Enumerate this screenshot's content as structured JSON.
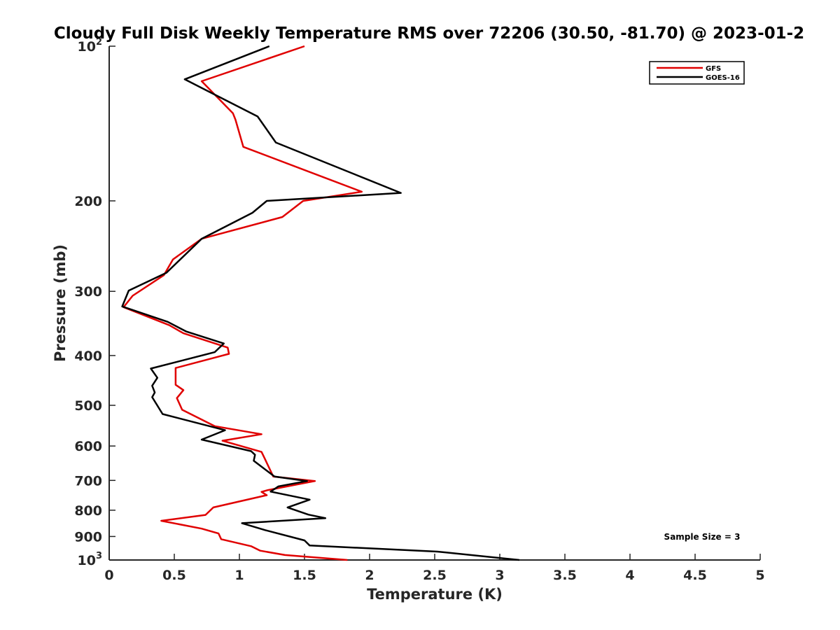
{
  "chart_data": {
    "type": "line",
    "title": "Cloudy Full Disk Weekly Temperature RMS over 72206 (30.50, -81.70) @ 2023-01-2",
    "xlabel": "Temperature (K)",
    "ylabel": "Pressure (mb)",
    "xlim": [
      0,
      5
    ],
    "ylim": [
      1000,
      100
    ],
    "y_scale": "log",
    "y_reversed": true,
    "x_ticks": [
      "0",
      "0.5",
      "1",
      "1.5",
      "2",
      "2.5",
      "3",
      "3.5",
      "4",
      "4.5",
      "5"
    ],
    "y_ticks": [
      {
        "value": 100,
        "base": "10",
        "exp": "2"
      },
      {
        "value": 200,
        "label": "200"
      },
      {
        "value": 300,
        "label": "300"
      },
      {
        "value": 400,
        "label": "400"
      },
      {
        "value": 500,
        "label": "500"
      },
      {
        "value": 600,
        "label": "600"
      },
      {
        "value": 700,
        "label": "700"
      },
      {
        "value": 800,
        "label": "800"
      },
      {
        "value": 900,
        "label": "900"
      },
      {
        "value": 1000,
        "base": "10",
        "exp": "3"
      }
    ],
    "grid": false,
    "legend_position": "top-right",
    "annotation": "Sample Size = 3",
    "series": [
      {
        "name": "GFS",
        "color": "#e00000",
        "points": [
          [
            1.5,
            100
          ],
          [
            0.71,
            117
          ],
          [
            0.95,
            135
          ],
          [
            0.97,
            139
          ],
          [
            1.03,
            157
          ],
          [
            1.94,
            192
          ],
          [
            1.49,
            200
          ],
          [
            1.33,
            215
          ],
          [
            0.71,
            237
          ],
          [
            0.49,
            260
          ],
          [
            0.42,
            279
          ],
          [
            0.18,
            306
          ],
          [
            0.11,
            322
          ],
          [
            0.46,
            349
          ],
          [
            0.57,
            362
          ],
          [
            0.91,
            386
          ],
          [
            0.92,
            397
          ],
          [
            0.51,
            423
          ],
          [
            0.51,
            456
          ],
          [
            0.57,
            467
          ],
          [
            0.52,
            484
          ],
          [
            0.56,
            510
          ],
          [
            0.81,
            549
          ],
          [
            1.17,
            569
          ],
          [
            0.87,
            586
          ],
          [
            1.17,
            616
          ],
          [
            1.19,
            631
          ],
          [
            1.26,
            688
          ],
          [
            1.58,
            702
          ],
          [
            1.22,
            731
          ],
          [
            1.17,
            737
          ],
          [
            1.21,
            748
          ],
          [
            0.8,
            790
          ],
          [
            0.74,
            817
          ],
          [
            0.4,
            839
          ],
          [
            0.71,
            869
          ],
          [
            0.84,
            888
          ],
          [
            0.86,
            911
          ],
          [
            1.09,
            940
          ],
          [
            1.16,
            959
          ],
          [
            1.35,
            978
          ],
          [
            1.83,
            1000
          ]
        ]
      },
      {
        "name": "GOES-16",
        "color": "#000000",
        "points": [
          [
            1.23,
            100
          ],
          [
            0.58,
            116
          ],
          [
            1.14,
            137
          ],
          [
            1.28,
            154
          ],
          [
            2.24,
            193
          ],
          [
            1.21,
            200
          ],
          [
            1.1,
            211
          ],
          [
            0.71,
            237
          ],
          [
            0.63,
            248
          ],
          [
            0.44,
            276
          ],
          [
            0.15,
            299
          ],
          [
            0.1,
            321
          ],
          [
            0.45,
            344
          ],
          [
            0.59,
            359
          ],
          [
            0.88,
            379
          ],
          [
            0.81,
            394
          ],
          [
            0.32,
            424
          ],
          [
            0.37,
            442
          ],
          [
            0.33,
            458
          ],
          [
            0.35,
            472
          ],
          [
            0.33,
            482
          ],
          [
            0.41,
            520
          ],
          [
            0.89,
            559
          ],
          [
            0.71,
            583
          ],
          [
            1.09,
            614
          ],
          [
            1.12,
            624
          ],
          [
            1.11,
            641
          ],
          [
            1.27,
            688
          ],
          [
            1.52,
            702
          ],
          [
            1.3,
            719
          ],
          [
            1.24,
            736
          ],
          [
            1.54,
            763
          ],
          [
            1.37,
            790
          ],
          [
            1.53,
            816
          ],
          [
            1.66,
            829
          ],
          [
            1.02,
            848
          ],
          [
            1.2,
            875
          ],
          [
            1.5,
            916
          ],
          [
            1.54,
            937
          ],
          [
            2.52,
            963
          ],
          [
            3.15,
            1000
          ]
        ]
      }
    ]
  }
}
